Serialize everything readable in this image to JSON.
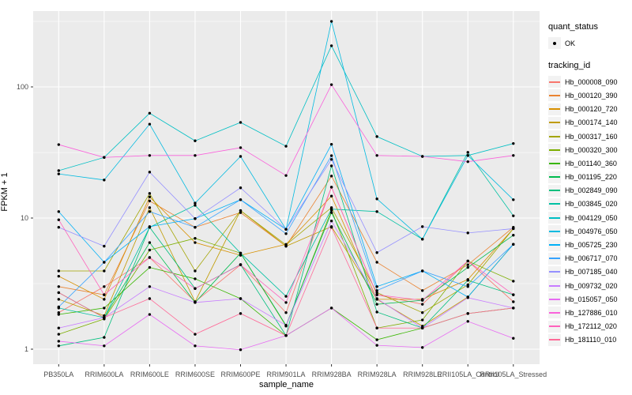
{
  "legend": {
    "quant_status_title": "quant_status",
    "quant_status_items": [
      {
        "label": "OK",
        "marker": "black-point"
      }
    ],
    "tracking_id_title": "tracking_id"
  },
  "chart_data": {
    "type": "line",
    "title": "",
    "xlabel": "sample_name",
    "ylabel": "FPKM + 1",
    "x_scale": "categorical",
    "y_scale": "log10",
    "ylim": [
      0.77,
      380
    ],
    "y_major_ticks": [
      1,
      10,
      100
    ],
    "y_minor_gridlines": [
      3.16,
      31.6,
      316
    ],
    "grid": true,
    "legend_position": "right",
    "panel_background": "#EBEBEB",
    "gridline_color": "#FFFFFF",
    "point_color": "#000000",
    "categories": [
      "PB350LA",
      "RRIM600LA",
      "RRIM600LE",
      "RRIM600SE",
      "RRIM600PE",
      "RRIM901LA",
      "RRIM928BA",
      "RRIM928LA",
      "RRIM928LE",
      "RRII105LA_Control",
      "RRII105LA_Stressed"
    ],
    "series": [
      {
        "name": "Hb_000008_090",
        "color": "#F8766D",
        "values": [
          1.9,
          3.0,
          5.0,
          2.3,
          4.4,
          1.9,
          17.2,
          2.6,
          2.2,
          4.7,
          2.3
        ]
      },
      {
        "name": "Hb_000120_390",
        "color": "#EA8331",
        "values": [
          3.0,
          2.6,
          13.5,
          8.5,
          11.0,
          6.1,
          20.9,
          4.6,
          2.8,
          4.4,
          8.5
        ]
      },
      {
        "name": "Hb_000120_720",
        "color": "#D89000",
        "values": [
          3.6,
          2.4,
          14.5,
          6.5,
          5.2,
          6.3,
          14.7,
          2.4,
          2.4,
          3.4,
          8.3
        ]
      },
      {
        "name": "Hb_000174_140",
        "color": "#C09B00",
        "values": [
          2.4,
          1.8,
          12.0,
          2.3,
          11.4,
          6.1,
          8.6,
          2.4,
          1.5,
          2.5,
          6.3
        ]
      },
      {
        "name": "Hb_000317_160",
        "color": "#A3A500",
        "values": [
          3.95,
          3.95,
          15.4,
          3.95,
          11.4,
          6.25,
          12.0,
          2.7,
          1.9,
          3.1,
          8.3
        ]
      },
      {
        "name": "Hb_000320_300",
        "color": "#7CAE00",
        "values": [
          1.3,
          1.7,
          5.7,
          7.0,
          5.4,
          1.5,
          11.5,
          1.45,
          1.67,
          4.7,
          3.3
        ]
      },
      {
        "name": "Hb_001140_360",
        "color": "#39B600",
        "values": [
          1.84,
          2.06,
          4.2,
          3.44,
          2.43,
          1.27,
          2.06,
          1.18,
          1.45,
          1.87,
          2.06
        ]
      },
      {
        "name": "Hb_001195_220",
        "color": "#00BB4E",
        "values": [
          2.7,
          1.74,
          6.5,
          2.27,
          5.4,
          1.52,
          11.0,
          2.2,
          2.36,
          4.2,
          7.4
        ]
      },
      {
        "name": "Hb_002849_090",
        "color": "#00BF7D",
        "values": [
          1.06,
          1.23,
          8.5,
          2.9,
          4.42,
          1.27,
          25.0,
          1.92,
          1.45,
          3.35,
          2.6
        ]
      },
      {
        "name": "Hb_003845_020",
        "color": "#00C1A3",
        "values": [
          2.06,
          1.74,
          8.5,
          12.5,
          5.4,
          2.53,
          11.7,
          11.2,
          6.9,
          31.7,
          10.4
        ]
      },
      {
        "name": "Hb_004129_050",
        "color": "#00BFC4",
        "values": [
          23.0,
          29.0,
          63.0,
          38.8,
          53.6,
          35.3,
          206.0,
          41.8,
          29.5,
          30.0,
          37.0
        ]
      },
      {
        "name": "Hb_004976_050",
        "color": "#00BAE0",
        "values": [
          21.7,
          19.5,
          52.0,
          13.0,
          29.5,
          8.2,
          316.0,
          14.0,
          6.9,
          30.0,
          13.8
        ]
      },
      {
        "name": "Hb_005725_230",
        "color": "#00B0F6",
        "values": [
          11.2,
          4.6,
          8.6,
          9.9,
          13.8,
          8.2,
          36.5,
          3.0,
          3.95,
          2.5,
          6.3
        ]
      },
      {
        "name": "Hb_006717_070",
        "color": "#35A2FF",
        "values": [
          2.1,
          4.6,
          11.2,
          8.5,
          13.8,
          7.6,
          29.9,
          2.8,
          3.95,
          3.0,
          6.3
        ]
      },
      {
        "name": "Hb_007185_040",
        "color": "#9590FF",
        "values": [
          8.5,
          6.1,
          22.4,
          9.9,
          17.0,
          8.2,
          28.0,
          5.45,
          8.6,
          7.7,
          8.3
        ]
      },
      {
        "name": "Hb_009732_020",
        "color": "#C77CFF",
        "values": [
          1.45,
          1.74,
          3.0,
          2.27,
          2.43,
          1.52,
          9.5,
          2.43,
          1.45,
          2.47,
          2.06
        ]
      },
      {
        "name": "Hb_015057_050",
        "color": "#E76BF3",
        "values": [
          1.15,
          1.06,
          1.84,
          1.06,
          0.99,
          1.27,
          2.06,
          1.07,
          1.03,
          1.63,
          1.21
        ]
      },
      {
        "name": "Hb_127886_010",
        "color": "#FA62DB",
        "values": [
          36.3,
          29.0,
          30.0,
          30.0,
          34.4,
          21.1,
          104.0,
          30.0,
          29.5,
          26.9,
          30.0
        ]
      },
      {
        "name": "Hb_172112_020",
        "color": "#FF62BC",
        "values": [
          9.7,
          2.6,
          5.0,
          2.9,
          4.4,
          2.27,
          17.2,
          2.6,
          2.36,
          4.7,
          2.6
        ]
      },
      {
        "name": "Hb_181110_010",
        "color": "#FF6A98",
        "values": [
          2.7,
          1.74,
          2.43,
          1.3,
          1.87,
          1.27,
          8.5,
          1.45,
          1.45,
          1.87,
          2.06
        ]
      }
    ]
  }
}
